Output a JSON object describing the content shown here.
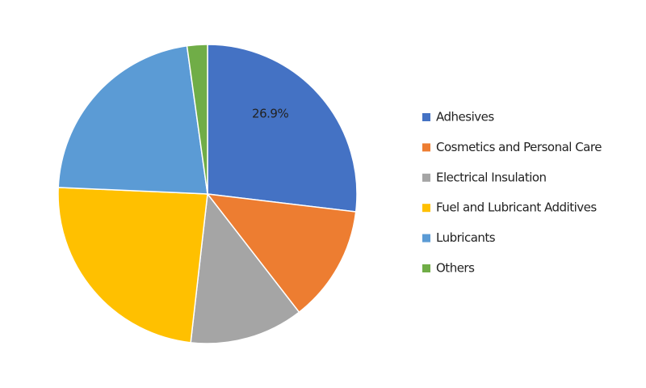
{
  "chart_data": {
    "type": "pie",
    "categories": [
      "Adhesives",
      "Cosmetics and Personal Care",
      "Electrical Insulation",
      "Fuel and Lubricant Additives",
      "Lubricants",
      "Others"
    ],
    "values": [
      26.9,
      12.6,
      12.3,
      23.9,
      22.1,
      2.2
    ],
    "value_labels": [
      "26.9%",
      null,
      null,
      null,
      null,
      null
    ],
    "colors": [
      "#4472c4",
      "#ed7d31",
      "#a5a5a5",
      "#ffc000",
      "#5b9bd5",
      "#70ad47"
    ],
    "legend": "right"
  }
}
